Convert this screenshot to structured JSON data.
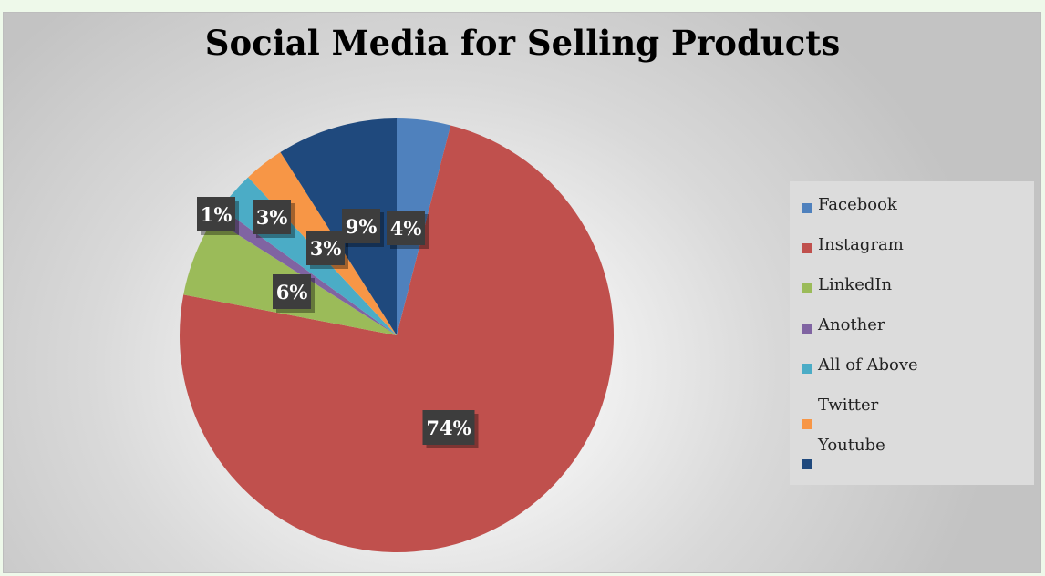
{
  "chart_data": {
    "type": "pie",
    "title": "Social Media for Selling Products",
    "categories": [
      "Facebook",
      "Instagram",
      "LinkedIn",
      "Another",
      "All of Above",
      "Twitter",
      "Youtube"
    ],
    "values": [
      4,
      74,
      6,
      1,
      3,
      3,
      9
    ],
    "labels": [
      "4%",
      "74%",
      "6%",
      "1%",
      "3%",
      "3%",
      "9%"
    ],
    "colors": [
      "#4f81bd",
      "#c0504d",
      "#9bbb59",
      "#8064a2",
      "#4bacc6",
      "#f79646",
      "#1f497d"
    ],
    "legend_position": "right"
  }
}
